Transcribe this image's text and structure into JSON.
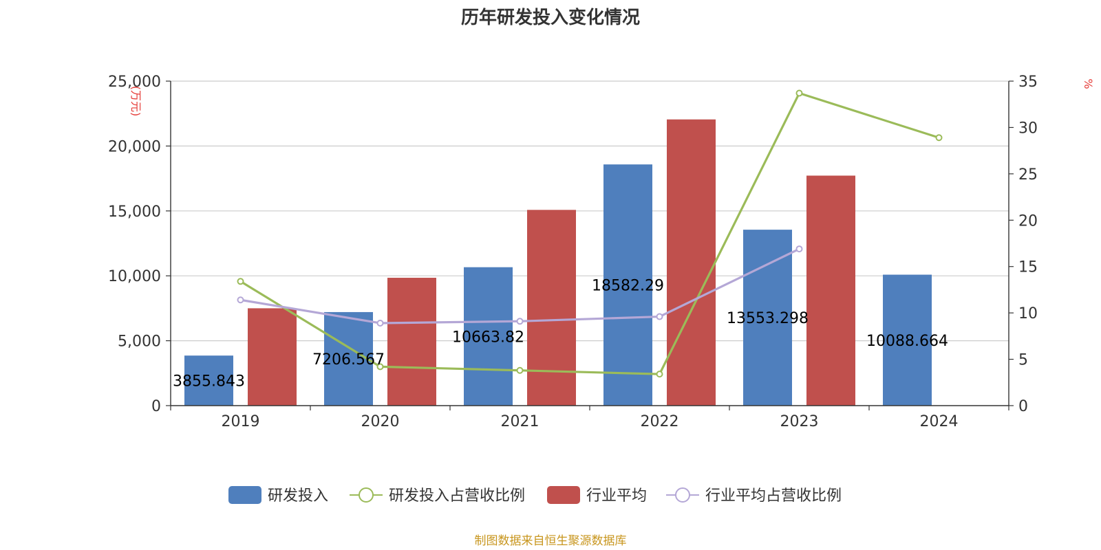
{
  "chart_data": {
    "type": "bar",
    "title": "历年研发投入变化情况",
    "source": "制图数据来自恒生聚源数据库",
    "y_left_unit": "(万元)",
    "y_right_unit": "%",
    "categories": [
      "2019",
      "2020",
      "2021",
      "2022",
      "2023",
      "2024"
    ],
    "y_left": {
      "min": 0,
      "max": 25000,
      "ticks": [
        "0",
        "5,000",
        "10,000",
        "15,000",
        "20,000",
        "25,000"
      ]
    },
    "y_right": {
      "min": 0,
      "max": 35,
      "ticks": [
        "0",
        "5",
        "10",
        "15",
        "20",
        "25",
        "30",
        "35"
      ]
    },
    "grid": true,
    "legend_position": "bottom",
    "series": [
      {
        "name": "研发投入",
        "type": "bar",
        "axis": "left",
        "color": "#4f7fbd",
        "values": [
          3855.843,
          7206.567,
          10663.82,
          18582.29,
          13553.298,
          10088.664
        ],
        "labels": [
          "3855.843",
          "7206.567",
          "10663.82",
          "18582.29",
          "13553.298",
          "10088.664"
        ]
      },
      {
        "name": "研发投入占营收比例",
        "type": "line",
        "axis": "right",
        "color": "#9bbb59",
        "values": [
          13.4,
          4.2,
          3.8,
          3.4,
          33.7,
          28.9
        ]
      },
      {
        "name": "行业平均",
        "type": "bar",
        "axis": "left",
        "color": "#c0504d",
        "values": [
          7500,
          9850,
          15080,
          22050,
          17720,
          null
        ]
      },
      {
        "name": "行业平均占营收比例",
        "type": "line",
        "axis": "right",
        "color": "#b4a7d6",
        "values": [
          11.4,
          8.9,
          9.1,
          9.6,
          16.9,
          null
        ]
      }
    ]
  }
}
